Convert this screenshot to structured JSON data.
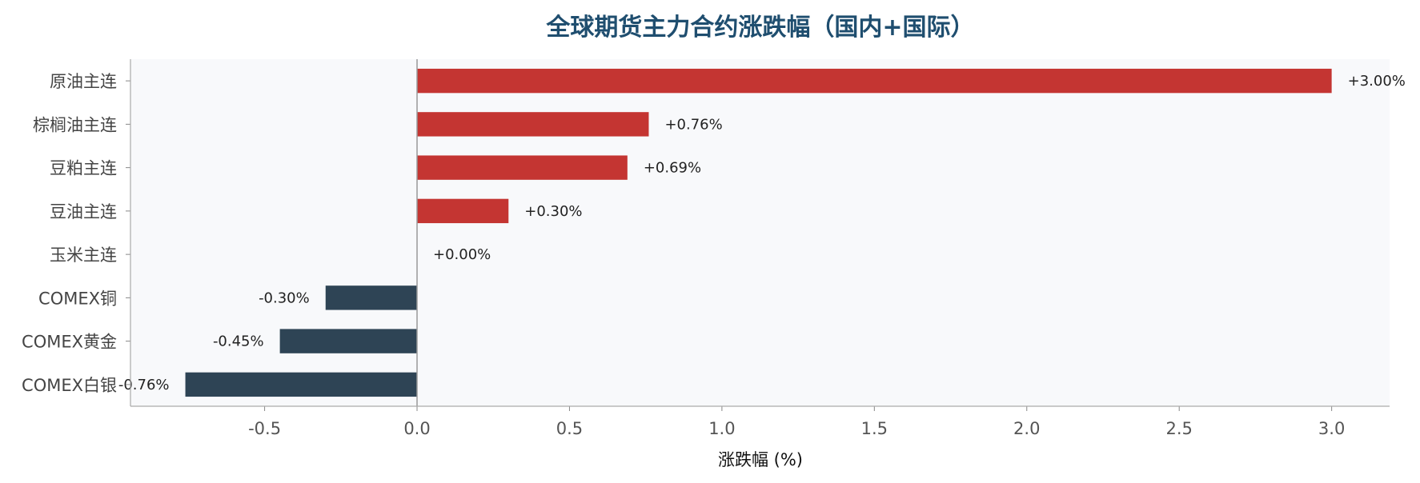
{
  "chart_data": {
    "type": "bar",
    "orientation": "horizontal",
    "title": "全球期货主力合约涨跌幅（国内+国际）",
    "xlabel": "涨跌幅 (%)",
    "ylabel": "",
    "xlim": [
      -0.94,
      3.19
    ],
    "xticks": [
      -0.5,
      0.0,
      0.5,
      1.0,
      1.5,
      2.0,
      2.5,
      3.0
    ],
    "xtick_labels": [
      "-0.5",
      "0.0",
      "0.5",
      "1.0",
      "1.5",
      "2.0",
      "2.5",
      "3.0"
    ],
    "categories": [
      "原油主连",
      "棕榈油主连",
      "豆粕主连",
      "豆油主连",
      "玉米主连",
      "COMEX铜",
      "COMEX黄金",
      "COMEX白银"
    ],
    "values": [
      3.0,
      0.76,
      0.69,
      0.3,
      0.0,
      -0.3,
      -0.45,
      -0.76
    ],
    "value_labels": [
      "+3.00%",
      "+0.76%",
      "+0.69%",
      "+0.30%",
      "+0.00%",
      "-0.30%",
      "-0.45%",
      "-0.76%"
    ],
    "grid": false,
    "legend": "none",
    "colors": {
      "positive": "#c43532",
      "negative": "#2e4455",
      "plot_background": "#f8f9fb",
      "zero_line": "#999999",
      "title": "#1f4e6f"
    }
  }
}
